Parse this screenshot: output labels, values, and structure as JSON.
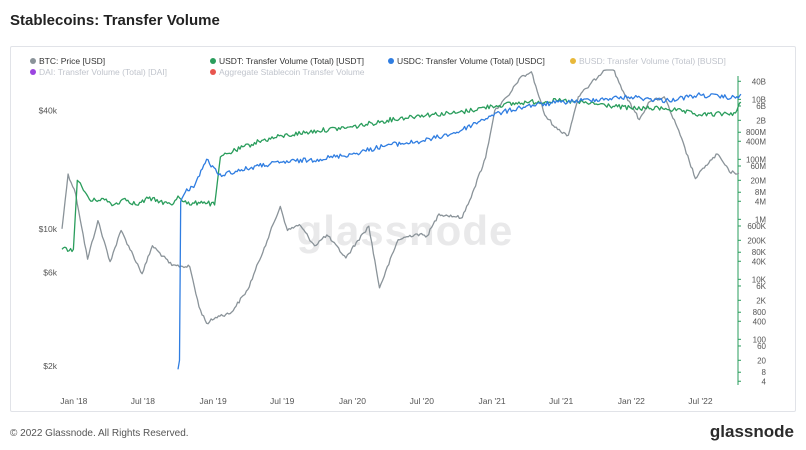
{
  "title": "Stablecoins: Transfer Volume",
  "footer": {
    "copyright": "© 2022 Glassnode. All Rights Reserved.",
    "logo": "glassnode"
  },
  "watermark": "glassnode",
  "legend": [
    {
      "label": "BTC: Price [USD]",
      "color": "#8a9399",
      "faded": false
    },
    {
      "label": "USDT: Transfer Volume (Total) [USDT]",
      "color": "#2a9d5c",
      "faded": false
    },
    {
      "label": "USDC: Transfer Volume (Total) [USDC]",
      "color": "#2f7de1",
      "faded": false
    },
    {
      "label": "BUSD: Transfer Volume (Total) [BUSD]",
      "color": "#e8b83a",
      "faded": true
    },
    {
      "label": "DAI: Transfer Volume (Total) [DAI]",
      "color": "#9b45e0",
      "faded": true
    },
    {
      "label": "Aggregate Stablecoin Transfer Volume",
      "color": "#e8554e",
      "faded": true
    }
  ],
  "chart_data": {
    "type": "line",
    "x_ticks": [
      "Jan '18",
      "Jul '18",
      "Jan '19",
      "Jul '19",
      "Jan '20",
      "Jul '20",
      "Jan '21",
      "Jul '21",
      "Jan '22",
      "Jul '22"
    ],
    "y_left": {
      "scale": "log",
      "ticks": [
        "$40k",
        "$10k",
        "$6k",
        "$2k"
      ],
      "tick_values": [
        40000,
        10000,
        6000,
        2000
      ]
    },
    "y_right": {
      "scale": "log",
      "ticks": [
        "40B",
        "10B",
        "6B",
        "2B",
        "800M",
        "400M",
        "100M",
        "60M",
        "20M",
        "8M",
        "4M",
        "1M",
        "600K",
        "200K",
        "80K",
        "40K",
        "10K",
        "6K",
        "2K",
        "800",
        "400",
        "100",
        "60",
        "20",
        "8",
        "4"
      ],
      "tick_values": [
        40000000000.0,
        10000000000.0,
        6000000000.0,
        2000000000.0,
        800000000.0,
        400000000.0,
        100000000.0,
        60000000.0,
        20000000.0,
        8000000.0,
        4000000.0,
        1000000.0,
        600000.0,
        200000.0,
        80000.0,
        40000.0,
        10000.0,
        6000.0,
        2000.0,
        800,
        400,
        100,
        60,
        20,
        8,
        4
      ]
    },
    "series": [
      {
        "name": "BTC: Price [USD]",
        "color": "#8a9399",
        "axis": "left",
        "x": [
          "2017-12-01",
          "2017-12-17",
          "2018-01-06",
          "2018-02-06",
          "2018-03-05",
          "2018-04-06",
          "2018-05-05",
          "2018-06-29",
          "2018-07-26",
          "2018-09-15",
          "2018-11-01",
          "2018-11-25",
          "2018-12-15",
          "2019-01-15",
          "2019-02-15",
          "2019-04-02",
          "2019-05-15",
          "2019-06-26",
          "2019-07-15",
          "2019-08-15",
          "2019-09-24",
          "2019-10-26",
          "2019-12-15",
          "2020-01-15",
          "2020-02-13",
          "2020-03-12",
          "2020-04-30",
          "2020-06-15",
          "2020-07-15",
          "2020-08-15",
          "2020-10-15",
          "2020-11-15",
          "2020-12-15",
          "2021-01-08",
          "2021-02-15",
          "2021-03-13",
          "2021-04-14",
          "2021-05-19",
          "2021-06-22",
          "2021-07-20",
          "2021-08-15",
          "2021-09-06",
          "2021-10-20",
          "2021-11-10",
          "2021-12-15",
          "2022-01-22",
          "2022-02-15",
          "2022-03-28",
          "2022-05-09",
          "2022-06-18",
          "2022-07-15",
          "2022-08-15",
          "2022-09-15",
          "2022-10-10"
        ],
        "y": [
          10000,
          19000,
          15000,
          7000,
          11000,
          6800,
          9800,
          5900,
          8200,
          6500,
          6400,
          4000,
          3300,
          3600,
          3700,
          4900,
          8000,
          13000,
          9800,
          10500,
          8200,
          9300,
          7100,
          8700,
          10300,
          5000,
          8800,
          9400,
          9200,
          11900,
          11400,
          16000,
          23000,
          40000,
          48000,
          58000,
          63000,
          38000,
          32000,
          30000,
          47000,
          52000,
          64000,
          68000,
          48000,
          36000,
          44000,
          47000,
          30000,
          18000,
          21000,
          24000,
          19500,
          19200
        ]
      },
      {
        "name": "USDT: Transfer Volume (Total) [USDT]",
        "color": "#2a9d5c",
        "axis": "right",
        "x": [
          "2017-12-01",
          "2017-12-31",
          "2018-01-10",
          "2018-02-15",
          "2018-03-15",
          "2018-04-15",
          "2018-05-15",
          "2018-06-15",
          "2018-07-15",
          "2018-08-15",
          "2018-09-15",
          "2018-10-01",
          "2018-11-01",
          "2018-12-01",
          "2019-01-05",
          "2019-01-20",
          "2019-03-01",
          "2019-05-01",
          "2019-07-01",
          "2019-10-01",
          "2020-01-01",
          "2020-04-01",
          "2020-07-01",
          "2020-10-01",
          "2021-01-01",
          "2021-04-01",
          "2021-07-01",
          "2021-10-01",
          "2022-01-01",
          "2022-04-01",
          "2022-07-01",
          "2022-10-01",
          "2022-10-15"
        ],
        "y": [
          100000,
          100000,
          20000000,
          4000000,
          5000000,
          3000000,
          5000000,
          3000000,
          5000000,
          4000000,
          3000000,
          6000000,
          3000000,
          4000000,
          3000000,
          120000000,
          200000000,
          400000000,
          600000000,
          900000000,
          1200000000,
          2000000000,
          3000000000,
          3500000000,
          6000000000,
          8000000000,
          9000000000,
          7000000000,
          5000000000,
          5000000000,
          3000000000,
          3500000000,
          8000000000
        ]
      },
      {
        "name": "USDC: Transfer Volume (Total) [USDC]",
        "color": "#2f7de1",
        "axis": "right",
        "x": [
          "2018-10-01",
          "2018-10-05",
          "2018-10-08",
          "2018-10-20",
          "2018-11-15",
          "2018-12-15",
          "2019-01-15",
          "2019-03-01",
          "2019-05-01",
          "2019-07-01",
          "2019-10-01",
          "2020-01-01",
          "2020-04-01",
          "2020-07-01",
          "2020-10-01",
          "2021-01-01",
          "2021-04-01",
          "2021-07-01",
          "2021-10-01",
          "2022-01-01",
          "2022-04-01",
          "2022-07-01",
          "2022-10-01",
          "2022-10-15"
        ],
        "y": [
          10,
          20,
          4000000,
          8000000,
          15000000,
          100000000,
          30000000,
          40000000,
          60000000,
          80000000,
          100000000,
          150000000,
          300000000,
          400000000,
          800000000,
          3000000000,
          6000000000,
          8000000000,
          10000000000,
          12000000000,
          9000000000,
          14000000000,
          11000000000,
          15000000000
        ]
      }
    ]
  }
}
